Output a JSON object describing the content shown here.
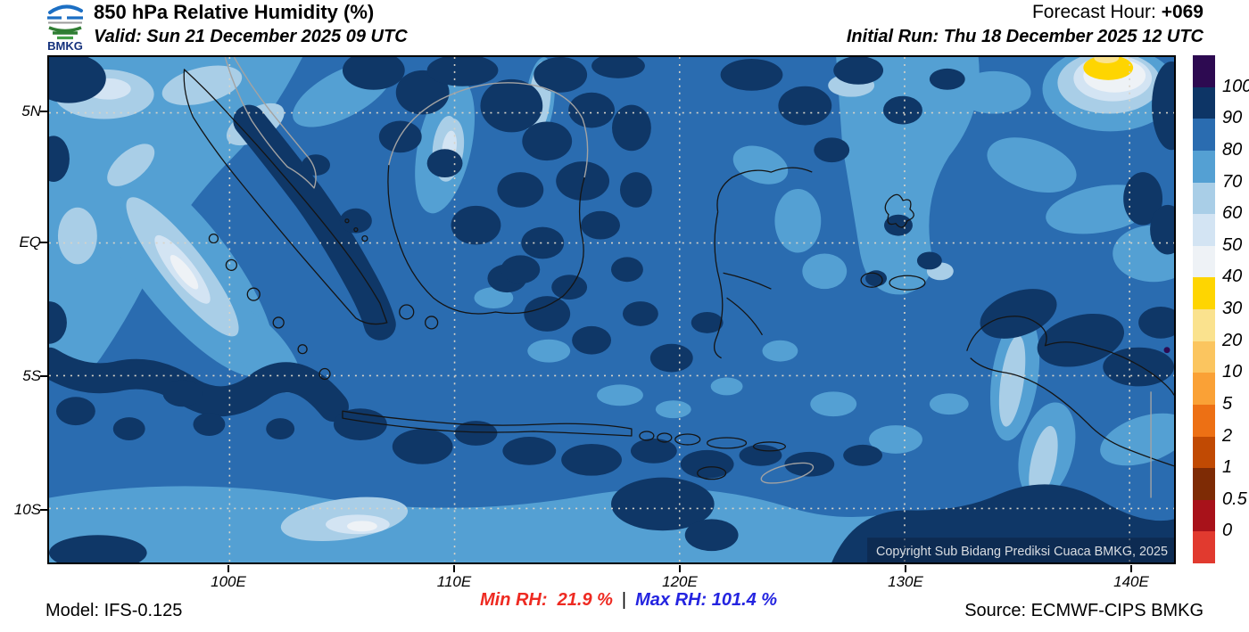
{
  "header": {
    "logo_text": "BMKG",
    "title": "850 hPa Relative Humidity (%)",
    "valid_line": "Valid: Sun 21 December 2025 09 UTC",
    "forecast_hour_label": "Forecast Hour: ",
    "forecast_hour_value": "+069",
    "initial_run_line": "Initial Run: Thu 18 December 2025 12 UTC"
  },
  "footer": {
    "model_line": "Model: IFS-0.125",
    "min_rh_label": "Min RH:  ",
    "min_rh_value": "21.9 %",
    "separator": "|",
    "max_rh_label": "Max RH: ",
    "max_rh_value": "101.4 %",
    "source_line": "Source: ECMWF-CIPS BMKG",
    "min_color": "#ee2a21",
    "max_color": "#2424e0"
  },
  "map": {
    "copyright": "Copyright Sub Bidang Prediksi Cuaca BMKG, 2025",
    "x_ticks": [
      "100E",
      "110E",
      "120E",
      "130E",
      "140E"
    ],
    "y_ticks": [
      "5N",
      "EQ",
      "5S",
      "10S"
    ]
  },
  "colorbar": {
    "unit": "%",
    "labels": [
      "100",
      "90",
      "80",
      "70",
      "60",
      "50",
      "40",
      "30",
      "20",
      "10",
      "5",
      "2",
      "1",
      "0.5",
      "0"
    ],
    "segment_colors": [
      "#2d0a51",
      "#0d3566",
      "#2a6cb0",
      "#54a0d3",
      "#a9cee7",
      "#d3e4f3",
      "#eef2f6",
      "#fed501",
      "#fae28e",
      "#fbc55f",
      "#faa136",
      "#ed7014",
      "#c14a03",
      "#7e2b05",
      "#a8121a",
      "#e13a2f"
    ]
  },
  "chart_data": {
    "type": "heatmap",
    "title": "850 hPa Relative Humidity (%)",
    "valid_time": "Sun 21 December 2025 09 UTC",
    "initial_run": "Thu 18 December 2025 12 UTC",
    "forecast_hour": "+069",
    "model": "IFS-0.125",
    "source": "ECMWF-CIPS BMKG",
    "min_rh_percent": 21.9,
    "max_rh_percent": 101.4,
    "x_axis": {
      "label": "longitude",
      "ticks": [
        "100E",
        "110E",
        "120E",
        "130E",
        "140E"
      ],
      "range_approx": [
        "92E",
        "142E"
      ]
    },
    "y_axis": {
      "label": "latitude",
      "ticks": [
        "5N",
        "EQ",
        "5S",
        "10S"
      ],
      "range_approx": [
        "7N",
        "12S"
      ]
    },
    "legend": {
      "unit": "%",
      "levels": [
        0,
        0.5,
        1,
        2,
        5,
        10,
        20,
        30,
        40,
        50,
        60,
        70,
        80,
        90,
        100
      ],
      "colors_top_to_bottom": [
        "#2d0a51",
        "#0d3566",
        "#2a6cb0",
        "#54a0d3",
        "#a9cee7",
        "#d3e4f3",
        "#eef2f6",
        "#fed501",
        "#fae28e",
        "#fbc55f",
        "#faa136",
        "#ed7014",
        "#c14a03",
        "#7e2b05",
        "#a8121a",
        "#e13a2f"
      ]
    },
    "field_summary": "Filled-contour RH field over the Indonesian maritime continent; dominated by 80-90% (medium blue) with widespread 90-100% (dark navy) cells over Borneo, Sumatra ridge, Java-Nusa Tenggara and southern Papua; 60-80% (light blues) bands northwest of Sumatra, central-east seas and below 10S; a dry 30-50% pocket (yellow/white ring) near the top-right (~138E, 6N); tiny >100% purple speck near Papua east edge."
  }
}
